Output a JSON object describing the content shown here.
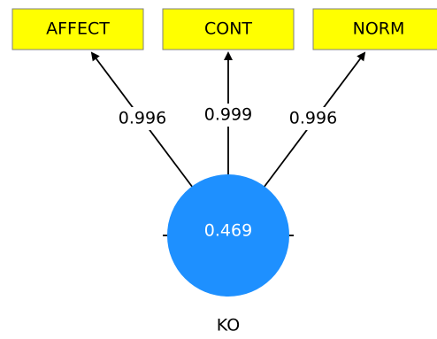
{
  "construct": {
    "name": "KO",
    "r_squared": "0.469",
    "fill_color": "#1e90ff"
  },
  "indicators": [
    {
      "name": "AFFECT",
      "loading": "0.996"
    },
    {
      "name": "CONT",
      "loading": "0.999"
    },
    {
      "name": "NORM",
      "loading": "0.996"
    }
  ],
  "colors": {
    "indicator_box": "#ffff00",
    "arrow": "#000000"
  }
}
